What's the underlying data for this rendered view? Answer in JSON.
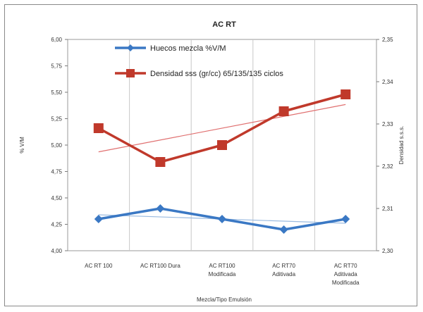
{
  "chart_data": {
    "type": "line",
    "title": "AC RT",
    "xlabel": "Mezcla/Tipo Emulsión",
    "ylabel_left": "% V/M",
    "ylabel_right": "Densidad s.s.s.",
    "categories": [
      [
        "AC RT 100"
      ],
      [
        "AC RT100 Dura"
      ],
      [
        "AC RT100",
        "Modificada"
      ],
      [
        "AC RT70",
        "Aditivada"
      ],
      [
        "AC RT70",
        "Aditivada",
        "Modificada"
      ]
    ],
    "y_left": {
      "min": 4.0,
      "max": 6.0,
      "step": 0.25,
      "ticks": [
        "4,00",
        "4,25",
        "4,50",
        "4,75",
        "5,00",
        "5,25",
        "5,50",
        "5,75",
        "6,00"
      ]
    },
    "y_right": {
      "min": 2.3,
      "max": 2.35,
      "step": 0.01,
      "ticks": [
        "2,30",
        "2,31",
        "2,32",
        "2,33",
        "2,34",
        "2,35"
      ]
    },
    "series": [
      {
        "name": "Huecos mezcla %V/M",
        "axis": "left",
        "color": "#3a78c4",
        "marker": "diamond",
        "values": [
          4.3,
          4.4,
          4.3,
          4.2,
          4.3
        ]
      },
      {
        "name": "Densidad sss (gr/cc) 65/135/135 ciclos",
        "axis": "right",
        "color": "#c0392b",
        "marker": "square",
        "values": [
          2.329,
          2.321,
          2.325,
          2.333,
          2.337
        ]
      }
    ],
    "trendline_colors": {
      "left": "#9bbbe0",
      "right": "#e07070"
    },
    "grid": "vertical",
    "legend_position": "top-left"
  }
}
